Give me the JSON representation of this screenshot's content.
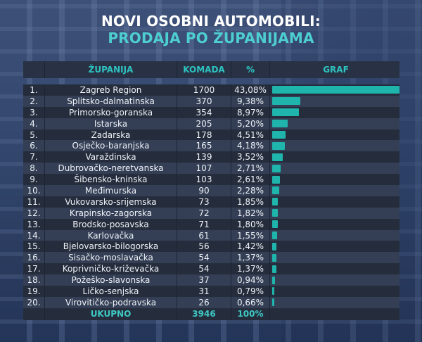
{
  "title": {
    "line1": "NOVI OSOBNI AUTOMOBILI:",
    "line2": "PRODAJA PO ŽUPANIJAMA"
  },
  "colors": {
    "accent": "#1fb5ad",
    "header_text": "#2dc3c0",
    "title_highlight": "#4ecfcf",
    "row_dark": "#252d3c",
    "row_light": "#343f55"
  },
  "table": {
    "headers": {
      "num": "",
      "county": "ŽUPANIJA",
      "qty": "KOMADA",
      "pct": "%",
      "graph": "GRAF"
    },
    "rows": [
      {
        "rank": "1.",
        "county": "Zagreb Region",
        "qty": "1700",
        "pct": "43,08%"
      },
      {
        "rank": "2.",
        "county": "Splitsko-dalmatinska",
        "qty": "370",
        "pct": "9,38%"
      },
      {
        "rank": "3.",
        "county": "Primorsko-goranska",
        "qty": "354",
        "pct": "8,97%"
      },
      {
        "rank": "4.",
        "county": "Istarska",
        "qty": "205",
        "pct": "5,20%"
      },
      {
        "rank": "5.",
        "county": "Zadarska",
        "qty": "178",
        "pct": "4,51%"
      },
      {
        "rank": "6.",
        "county": "Osječko-baranjska",
        "qty": "165",
        "pct": "4,18%"
      },
      {
        "rank": "7.",
        "county": "Varaždinska",
        "qty": "139",
        "pct": "3,52%"
      },
      {
        "rank": "8.",
        "county": "Dubrovačko-neretvanska",
        "qty": "107",
        "pct": "2,71%"
      },
      {
        "rank": "9.",
        "county": "Šibensko-kninska",
        "qty": "103",
        "pct": "2,61%"
      },
      {
        "rank": "10.",
        "county": "Međimurska",
        "qty": "90",
        "pct": "2,28%"
      },
      {
        "rank": "11.",
        "county": "Vukovarsko-srijemska",
        "qty": "73",
        "pct": "1,85%"
      },
      {
        "rank": "12.",
        "county": "Krapinsko-zagorska",
        "qty": "72",
        "pct": "1,82%"
      },
      {
        "rank": "13.",
        "county": "Brodsko-posavska",
        "qty": "71",
        "pct": "1,80%"
      },
      {
        "rank": "14.",
        "county": "Karlovačka",
        "qty": "61",
        "pct": "1,55%"
      },
      {
        "rank": "15.",
        "county": "Bjelovarsko-bilogorska",
        "qty": "56",
        "pct": "1,42%"
      },
      {
        "rank": "16.",
        "county": "Sisačko-moslavačka",
        "qty": "54",
        "pct": "1,37%"
      },
      {
        "rank": "17.",
        "county": "Koprivničko-križevačka",
        "qty": "54",
        "pct": "1,37%"
      },
      {
        "rank": "18.",
        "county": "Požeško-slavonska",
        "qty": "37",
        "pct": "0,94%"
      },
      {
        "rank": "19.",
        "county": "Ličko-senjska",
        "qty": "31",
        "pct": "0,79%"
      },
      {
        "rank": "20.",
        "county": "Virovitičko-podravska",
        "qty": "26",
        "pct": "0,66%"
      }
    ],
    "total": {
      "label": "UKUPNO",
      "qty": "3946",
      "pct": "100%"
    }
  },
  "chart_data": {
    "type": "table",
    "title": "NOVI OSOBNI AUTOMOBILI: PRODAJA PO ŽUPANIJAMA",
    "columns": [
      "ŽUPANIJA",
      "KOMADA",
      "%",
      "GRAF"
    ],
    "categories": [
      "Zagreb Region",
      "Splitsko-dalmatinska",
      "Primorsko-goranska",
      "Istarska",
      "Zadarska",
      "Osječko-baranjska",
      "Varaždinska",
      "Dubrovačko-neretvanska",
      "Šibensko-kninska",
      "Međimurska",
      "Vukovarsko-srijemska",
      "Krapinsko-zagorska",
      "Brodsko-posavska",
      "Karlovačka",
      "Bjelovarsko-bilogorska",
      "Sisačko-moslavačka",
      "Koprivničko-križevačka",
      "Požeško-slavonska",
      "Ličko-senjska",
      "Virovitičko-podravska"
    ],
    "series": [
      {
        "name": "KOMADA",
        "values": [
          1700,
          370,
          354,
          205,
          178,
          165,
          139,
          107,
          103,
          90,
          73,
          72,
          71,
          61,
          56,
          54,
          54,
          37,
          31,
          26
        ]
      },
      {
        "name": "%",
        "values": [
          43.08,
          9.38,
          8.97,
          5.2,
          4.51,
          4.18,
          3.52,
          2.71,
          2.61,
          2.28,
          1.85,
          1.82,
          1.8,
          1.55,
          1.42,
          1.37,
          1.37,
          0.94,
          0.79,
          0.66
        ]
      }
    ],
    "bar_series": "KOMADA",
    "bar_max": 1700,
    "total": {
      "label": "UKUPNO",
      "qty": 3946,
      "pct": 100
    }
  }
}
